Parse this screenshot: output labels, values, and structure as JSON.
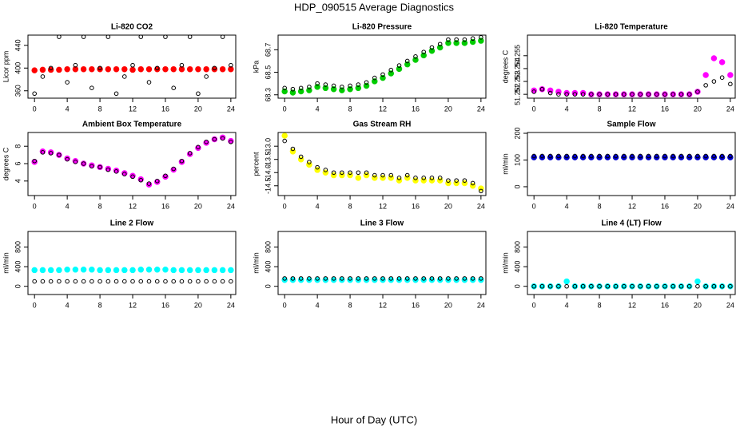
{
  "title": "HDP_090515  Average Diagnostics",
  "x_label": "Hour of Day (UTC)",
  "chart_data": [
    {
      "type": "scatter",
      "title": "Li-820 CO2",
      "y_label": "Licor ppm",
      "x": [
        0,
        1,
        2,
        3,
        4,
        5,
        6,
        7,
        8,
        9,
        10,
        11,
        12,
        13,
        14,
        15,
        16,
        17,
        18,
        19,
        20,
        21,
        22,
        23,
        24
      ],
      "xlim": [
        -0.8,
        24.6
      ],
      "xticks": [
        0,
        4,
        8,
        12,
        16,
        20,
        24
      ],
      "ylim": [
        347,
        458
      ],
      "yticks": [
        360,
        400,
        440
      ],
      "series": [
        {
          "color": "#ff0000",
          "values": [
            396,
            397,
            397,
            397,
            398,
            398,
            398,
            398,
            398,
            398,
            398,
            398,
            397,
            398,
            398,
            398,
            398,
            398,
            398,
            398,
            398,
            398,
            398,
            398,
            398
          ]
        },
        {
          "color": "#000000",
          "values": [
            355,
            385,
            400,
            455,
            375,
            405,
            455,
            365,
            400,
            455,
            355,
            385,
            405,
            455,
            375,
            400,
            455,
            365,
            405,
            455,
            355,
            385,
            400,
            455,
            405
          ]
        }
      ]
    },
    {
      "type": "scatter",
      "title": "Li-820 Pressure",
      "y_label": "kPa",
      "x": [
        0,
        1,
        2,
        3,
        4,
        5,
        6,
        7,
        8,
        9,
        10,
        11,
        12,
        13,
        14,
        15,
        16,
        17,
        18,
        19,
        20,
        21,
        22,
        23,
        24
      ],
      "xlim": [
        -0.8,
        24.6
      ],
      "xticks": [
        0,
        4,
        8,
        12,
        16,
        20,
        24
      ],
      "ylim": [
        68.27,
        68.83
      ],
      "yticks": [
        68.3,
        68.5,
        68.7
      ],
      "series": [
        {
          "color": "#00cc00",
          "values": [
            68.33,
            68.32,
            68.33,
            68.34,
            68.37,
            68.36,
            68.35,
            68.34,
            68.35,
            68.36,
            68.38,
            68.42,
            68.45,
            68.49,
            68.53,
            68.57,
            68.61,
            68.65,
            68.69,
            68.72,
            68.76,
            68.76,
            68.76,
            68.77,
            68.78
          ]
        },
        {
          "color": "#000000",
          "values": [
            68.36,
            68.35,
            68.36,
            68.37,
            68.4,
            68.39,
            68.38,
            68.37,
            68.38,
            68.39,
            68.41,
            68.45,
            68.48,
            68.52,
            68.56,
            68.6,
            68.64,
            68.68,
            68.72,
            68.75,
            68.79,
            68.79,
            68.79,
            68.8,
            68.81
          ]
        }
      ]
    },
    {
      "type": "scatter",
      "title": "Li-820 Temperature",
      "y_label": "degrees C",
      "x": [
        0,
        1,
        2,
        3,
        4,
        5,
        6,
        7,
        8,
        9,
        10,
        11,
        12,
        13,
        14,
        15,
        16,
        17,
        18,
        19,
        20,
        21,
        22,
        23,
        24
      ],
      "xlim": [
        -0.8,
        24.6
      ],
      "xticks": [
        0,
        4,
        8,
        12,
        16,
        20,
        24
      ],
      "ylim": [
        51.2517,
        51.2566
      ],
      "yticks": [
        51.252,
        51.253,
        51.254,
        51.255
      ],
      "series": [
        {
          "color": "#ff00ff",
          "values": [
            51.2523,
            51.2524,
            51.2523,
            51.2522,
            51.2521,
            51.2521,
            51.2521,
            51.252,
            51.252,
            51.252,
            51.252,
            51.252,
            51.252,
            51.252,
            51.252,
            51.252,
            51.252,
            51.252,
            51.252,
            51.252,
            51.2522,
            51.2535,
            51.2548,
            51.2545,
            51.2535
          ]
        },
        {
          "color": "#000000",
          "values": [
            51.2522,
            51.2524,
            51.2521,
            51.252,
            51.252,
            51.252,
            51.252,
            51.252,
            51.252,
            51.252,
            51.252,
            51.252,
            51.252,
            51.252,
            51.252,
            51.252,
            51.252,
            51.252,
            51.252,
            51.252,
            51.2522,
            51.2527,
            51.253,
            51.2533,
            51.2528
          ]
        }
      ]
    },
    {
      "type": "scatter",
      "title": "Ambient Box Temperature",
      "y_label": "degrees C",
      "x": [
        0,
        1,
        2,
        3,
        4,
        5,
        6,
        7,
        8,
        9,
        10,
        11,
        12,
        13,
        14,
        15,
        16,
        17,
        18,
        19,
        20,
        21,
        22,
        23,
        24
      ],
      "xlim": [
        -0.8,
        24.6
      ],
      "xticks": [
        0,
        4,
        8,
        12,
        16,
        20,
        24
      ],
      "ylim": [
        2.33,
        9.58
      ],
      "yticks": [
        4,
        6,
        8
      ],
      "series": [
        {
          "color": "#ff00ff",
          "values": [
            6.2,
            7.4,
            7.3,
            7.0,
            6.6,
            6.3,
            6.0,
            5.8,
            5.6,
            5.4,
            5.2,
            4.9,
            4.6,
            4.2,
            3.6,
            3.9,
            4.5,
            5.3,
            6.2,
            7.1,
            7.8,
            8.4,
            8.8,
            9.0,
            8.6
          ]
        },
        {
          "color": "#000000",
          "values": [
            6.3,
            7.3,
            7.2,
            7.0,
            6.5,
            6.2,
            6.0,
            5.7,
            5.6,
            5.3,
            5.1,
            4.8,
            4.5,
            4.1,
            3.7,
            4.0,
            4.6,
            5.4,
            6.3,
            7.2,
            7.9,
            8.5,
            8.8,
            8.9,
            8.5
          ]
        }
      ]
    },
    {
      "type": "scatter",
      "title": "Gas Stream RH",
      "y_label": "percent",
      "x": [
        0,
        1,
        2,
        3,
        4,
        5,
        6,
        7,
        8,
        9,
        10,
        11,
        12,
        13,
        14,
        15,
        16,
        17,
        18,
        19,
        20,
        21,
        22,
        23,
        24
      ],
      "xlim": [
        -0.8,
        24.6
      ],
      "xticks": [
        0,
        4,
        8,
        12,
        16,
        20,
        24
      ],
      "ylim": [
        -14.87,
        -12.48
      ],
      "yticks": [
        {
          "value": -13,
          "label": "-13.0"
        },
        -13.5,
        {
          "value": -14,
          "label": "-14.0"
        },
        -14.5
      ],
      "series": [
        {
          "color": "#ffff00",
          "values": [
            -12.6,
            -13.2,
            -13.5,
            -13.7,
            -13.9,
            -14.0,
            -14.1,
            -14.1,
            -14.1,
            -14.2,
            -14.1,
            -14.2,
            -14.2,
            -14.2,
            -14.3,
            -14.2,
            -14.3,
            -14.3,
            -14.3,
            -14.3,
            -14.4,
            -14.4,
            -14.4,
            -14.5,
            -14.6
          ]
        },
        {
          "color": "#000000",
          "values": [
            -12.8,
            -13.1,
            -13.4,
            -13.6,
            -13.8,
            -13.9,
            -14.0,
            -14.0,
            -14.0,
            -14.0,
            -14.0,
            -14.1,
            -14.1,
            -14.1,
            -14.2,
            -14.1,
            -14.2,
            -14.2,
            -14.2,
            -14.2,
            -14.3,
            -14.3,
            -14.3,
            -14.4,
            -14.7
          ]
        }
      ]
    },
    {
      "type": "scatter",
      "title": "Sample Flow",
      "y_label": "ml/min",
      "x": [
        0,
        1,
        2,
        3,
        4,
        5,
        6,
        7,
        8,
        9,
        10,
        11,
        12,
        13,
        14,
        15,
        16,
        17,
        18,
        19,
        20,
        21,
        22,
        23,
        24
      ],
      "xlim": [
        -0.8,
        24.6
      ],
      "xticks": [
        0,
        4,
        8,
        12,
        16,
        20,
        24
      ],
      "ylim": [
        -33,
        203
      ],
      "yticks": [
        0,
        100,
        200
      ],
      "series": [
        {
          "color": "#0000cc",
          "values": [
            110,
            110,
            110,
            110,
            110,
            110,
            110,
            110,
            110,
            110,
            110,
            110,
            110,
            110,
            110,
            110,
            110,
            110,
            110,
            110,
            110,
            110,
            110,
            110,
            110
          ]
        },
        {
          "color": "#000000",
          "values": [
            115,
            115,
            115,
            115,
            115,
            115,
            115,
            115,
            115,
            115,
            115,
            115,
            115,
            115,
            115,
            115,
            115,
            115,
            115,
            115,
            115,
            115,
            115,
            115,
            115
          ]
        }
      ]
    },
    {
      "type": "scatter",
      "title": "Line 2 Flow",
      "y_label": "ml/min",
      "x": [
        0,
        1,
        2,
        3,
        4,
        5,
        6,
        7,
        8,
        9,
        10,
        11,
        12,
        13,
        14,
        15,
        16,
        17,
        18,
        19,
        20,
        21,
        22,
        23,
        24
      ],
      "xlim": [
        -0.8,
        24.6
      ],
      "xticks": [
        0,
        4,
        8,
        12,
        16,
        20,
        24
      ],
      "ylim": [
        -167,
        1117
      ],
      "yticks": [
        0,
        400,
        800
      ],
      "series": [
        {
          "color": "#00ffff",
          "values": [
            330,
            330,
            330,
            330,
            340,
            340,
            340,
            340,
            330,
            330,
            330,
            330,
            330,
            340,
            340,
            340,
            340,
            330,
            330,
            330,
            330,
            330,
            330,
            330,
            330
          ]
        },
        {
          "color": "#000000",
          "values": [
            100,
            100,
            100,
            100,
            100,
            100,
            100,
            100,
            100,
            100,
            100,
            100,
            100,
            100,
            100,
            100,
            100,
            100,
            100,
            100,
            100,
            100,
            100,
            100,
            100
          ]
        }
      ]
    },
    {
      "type": "scatter",
      "title": "Line 3 Flow",
      "y_label": "ml/min",
      "x": [
        0,
        1,
        2,
        3,
        4,
        5,
        6,
        7,
        8,
        9,
        10,
        11,
        12,
        13,
        14,
        15,
        16,
        17,
        18,
        19,
        20,
        21,
        22,
        23,
        24
      ],
      "xlim": [
        -0.8,
        24.6
      ],
      "xticks": [
        0,
        4,
        8,
        12,
        16,
        20,
        24
      ],
      "ylim": [
        -167,
        1117
      ],
      "yticks": [
        0,
        400,
        800
      ],
      "series": [
        {
          "color": "#00ffff",
          "values": [
            130,
            130,
            130,
            130,
            130,
            130,
            130,
            130,
            130,
            130,
            130,
            130,
            130,
            130,
            130,
            130,
            130,
            130,
            130,
            130,
            130,
            130,
            130,
            130,
            130
          ]
        },
        {
          "color": "#000000",
          "values": [
            160,
            160,
            160,
            160,
            160,
            160,
            160,
            160,
            160,
            160,
            160,
            160,
            160,
            160,
            160,
            160,
            160,
            160,
            160,
            160,
            160,
            160,
            160,
            160,
            160
          ]
        }
      ]
    },
    {
      "type": "scatter",
      "title": "Line 4 (LT) Flow",
      "y_label": "ml/min",
      "x": [
        0,
        1,
        2,
        3,
        4,
        5,
        6,
        7,
        8,
        9,
        10,
        11,
        12,
        13,
        14,
        15,
        16,
        17,
        18,
        19,
        20,
        21,
        22,
        23,
        24
      ],
      "xlim": [
        -0.8,
        24.6
      ],
      "xticks": [
        0,
        4,
        8,
        12,
        16,
        20,
        24
      ],
      "ylim": [
        -167,
        1117
      ],
      "yticks": [
        0,
        400,
        800
      ],
      "series": [
        {
          "color": "#00ffff",
          "values": [
            0,
            0,
            0,
            0,
            100,
            0,
            0,
            0,
            0,
            0,
            0,
            0,
            0,
            0,
            0,
            0,
            0,
            0,
            0,
            0,
            100,
            0,
            0,
            0,
            0
          ]
        },
        {
          "color": "#000000",
          "values": [
            0,
            0,
            0,
            0,
            0,
            0,
            0,
            0,
            0,
            0,
            0,
            0,
            0,
            0,
            0,
            0,
            0,
            0,
            0,
            0,
            0,
            0,
            0,
            0,
            0
          ]
        }
      ]
    }
  ]
}
